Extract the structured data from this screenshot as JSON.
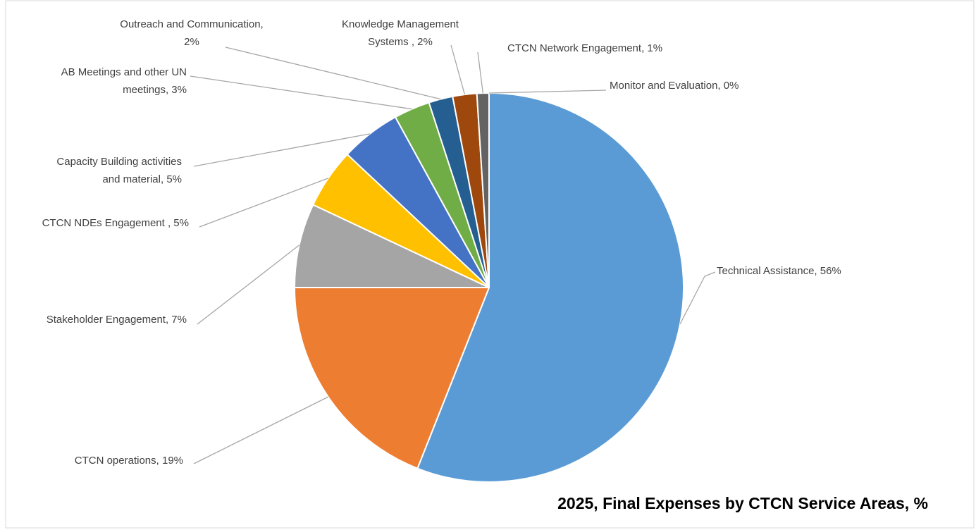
{
  "chart_data": {
    "type": "pie",
    "title": "2025, Final Expenses by CTCN Service Areas, %",
    "values": [
      56,
      19,
      7,
      5,
      5,
      3,
      2,
      2,
      1,
      0
    ],
    "value_labels": [
      [
        "Technical Assistance, 56%"
      ],
      [
        "CTCN operations, 19%"
      ],
      [
        "Stakeholder Engagement, 7%"
      ],
      [
        "CTCN NDEs Engagement , 5%"
      ],
      [
        "Capacity Building activities",
        "and material, 5%"
      ],
      [
        "AB Meetings and other UN",
        "meetings, 3%"
      ],
      [
        "Outreach and Communication,",
        "2%"
      ],
      [
        "Knowledge Management",
        "Systems , 2%"
      ],
      [
        "CTCN Network Engagement, 1%"
      ],
      [
        "Monitor and Evaluation, 0%"
      ]
    ],
    "colors": [
      "#5b9bd5",
      "#ed7d31",
      "#a5a5a5",
      "#ffc000",
      "#4472c4",
      "#70ad47",
      "#255e91",
      "#9e480e",
      "#636363",
      "#997300"
    ]
  }
}
